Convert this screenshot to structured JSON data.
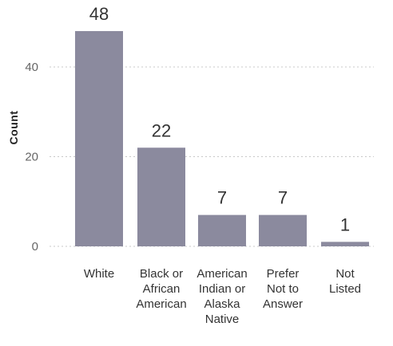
{
  "chart_data": {
    "type": "bar",
    "ylabel": "Count",
    "xlabel": "",
    "categories": [
      [
        "White"
      ],
      [
        "Black or",
        "African",
        "American"
      ],
      [
        "American",
        "Indian or",
        "Alaska",
        "Native"
      ],
      [
        "Prefer",
        "Not to",
        "Answer"
      ],
      [
        "Not",
        "Listed"
      ]
    ],
    "values": [
      48,
      22,
      7,
      7,
      1
    ],
    "data_labels": [
      "48",
      "22",
      "7",
      "7",
      "1"
    ],
    "yticks": [
      0,
      20,
      40
    ],
    "ytick_labels": [
      "0",
      "20",
      "40"
    ],
    "ylim": [
      0,
      48
    ],
    "grid": true,
    "bar_color": "#8b8a9e"
  }
}
